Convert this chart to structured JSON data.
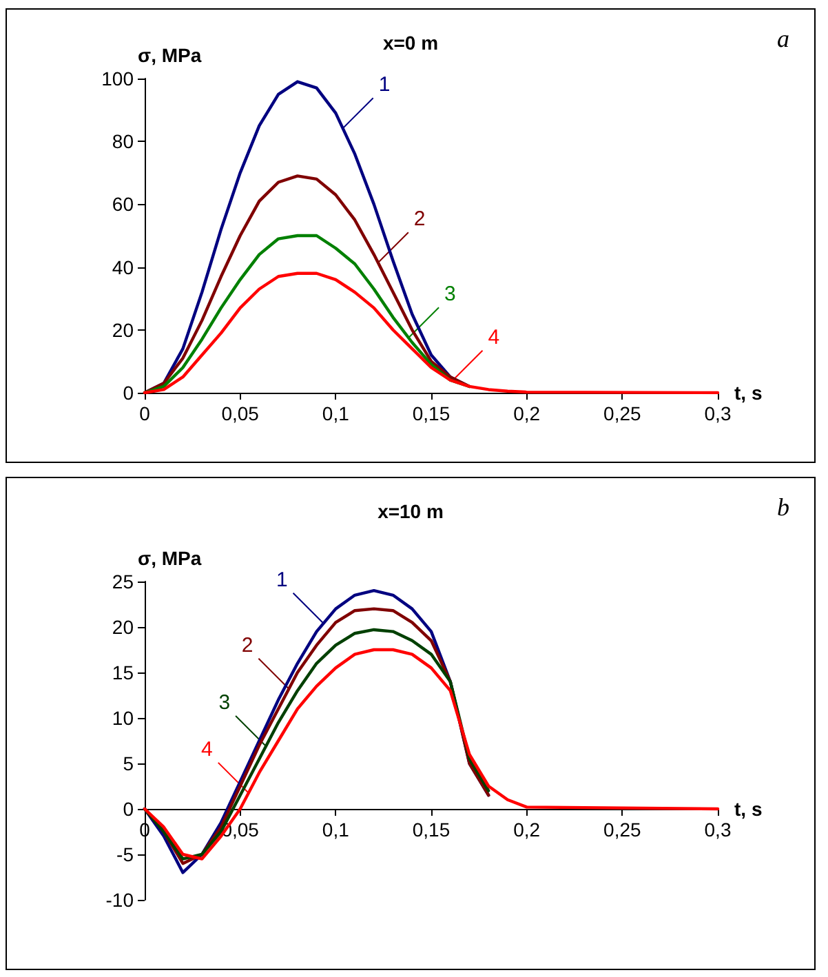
{
  "chart_data": [
    {
      "type": "line",
      "title": "x=0 m",
      "xlabel": "t, s",
      "ylabel": "σ, MPa",
      "annotations": [
        "a"
      ],
      "x": [
        0,
        0.01,
        0.02,
        0.03,
        0.04,
        0.05,
        0.06,
        0.07,
        0.08,
        0.09,
        0.1,
        0.11,
        0.12,
        0.13,
        0.14,
        0.15,
        0.16,
        0.17,
        0.18,
        0.19,
        0.2,
        0.3
      ],
      "series": [
        {
          "name": "1",
          "color": "#000080",
          "values": [
            0,
            3,
            14,
            32,
            52,
            70,
            85,
            95,
            99,
            97,
            89,
            76,
            60,
            42,
            25,
            12,
            5,
            2,
            null,
            null,
            null,
            null
          ]
        },
        {
          "name": "2",
          "color": "#800000",
          "values": [
            0,
            3,
            11,
            23,
            37,
            50,
            61,
            67,
            69,
            68,
            63,
            55,
            44,
            32,
            20,
            10,
            5,
            2,
            null,
            null,
            null,
            null
          ]
        },
        {
          "name": "3",
          "color": "#008000",
          "values": [
            0,
            2,
            8,
            17,
            27,
            36,
            44,
            49,
            50,
            50,
            46,
            41,
            33,
            24,
            16,
            9,
            4,
            2,
            null,
            null,
            null,
            null
          ]
        },
        {
          "name": "4",
          "color": "#ff0000",
          "values": [
            0,
            1,
            5,
            12,
            19,
            27,
            33,
            37,
            38,
            38,
            36,
            32,
            27,
            20,
            14,
            8,
            4,
            2,
            1,
            0.5,
            0.2,
            0
          ]
        }
      ],
      "xlim": [
        0,
        0.3
      ],
      "xticks": [
        0,
        {
          "value": 0.05,
          "label": "0,05"
        },
        {
          "value": 0.1,
          "label": "0,1"
        },
        {
          "value": 0.15,
          "label": "0,15"
        },
        {
          "value": 0.2,
          "label": "0,2"
        },
        {
          "value": 0.25,
          "label": "0,25"
        },
        {
          "value": 0.3,
          "label": "0,3"
        }
      ],
      "ylim": [
        0,
        100
      ],
      "yticks": [
        0,
        20,
        40,
        60,
        80,
        100
      ],
      "grid": false,
      "legend": false,
      "marker": "none",
      "line_style": "solid"
    },
    {
      "type": "line",
      "title": "x=10 m",
      "xlabel": "t, s",
      "ylabel": "σ, MPa",
      "annotations": [
        "b"
      ],
      "x": [
        0,
        0.01,
        0.02,
        0.03,
        0.04,
        0.05,
        0.06,
        0.07,
        0.08,
        0.09,
        0.1,
        0.11,
        0.12,
        0.13,
        0.14,
        0.15,
        0.16,
        0.17,
        0.18,
        0.19,
        0.2,
        0.3
      ],
      "series": [
        {
          "name": "1",
          "color": "#000080",
          "values": [
            0,
            -3,
            -7,
            -5,
            -1.5,
            3,
            7.5,
            12,
            16,
            19.5,
            22,
            23.5,
            24,
            23.5,
            22,
            19.5,
            14,
            5,
            1.5,
            null,
            null,
            null
          ]
        },
        {
          "name": "2",
          "color": "#800000",
          "values": [
            0,
            -2.5,
            -6,
            -5,
            -2,
            2.5,
            7,
            11,
            15,
            18,
            20.5,
            21.8,
            22,
            21.8,
            20.5,
            18.5,
            14,
            5,
            1.5,
            null,
            null,
            null
          ]
        },
        {
          "name": "3",
          "color": "#004000",
          "values": [
            0,
            -2.5,
            -5.5,
            -5,
            -2.5,
            1.5,
            5.5,
            9.5,
            13,
            16,
            18,
            19.3,
            19.7,
            19.5,
            18.5,
            17,
            14,
            5.5,
            2,
            null,
            null,
            null
          ]
        },
        {
          "name": "4",
          "color": "#ff0000",
          "values": [
            0,
            -2,
            -5,
            -5.5,
            -3,
            0,
            4,
            7.5,
            11,
            13.5,
            15.5,
            17,
            17.5,
            17.5,
            17,
            15.5,
            13,
            6,
            2.5,
            1,
            0.2,
            0
          ]
        }
      ],
      "xlim": [
        0,
        0.3
      ],
      "xticks": [
        0,
        {
          "value": 0.05,
          "label": "0,05"
        },
        {
          "value": 0.1,
          "label": "0,1"
        },
        {
          "value": 0.15,
          "label": "0,15"
        },
        {
          "value": 0.2,
          "label": "0,2"
        },
        {
          "value": 0.25,
          "label": "0,25"
        },
        {
          "value": 0.3,
          "label": "0,3"
        }
      ],
      "ylim": [
        -10,
        25
      ],
      "yticks": [
        -10,
        -5,
        0,
        5,
        10,
        15,
        20,
        25
      ],
      "grid": false,
      "legend": false,
      "marker": "none",
      "line_style": "solid"
    }
  ]
}
